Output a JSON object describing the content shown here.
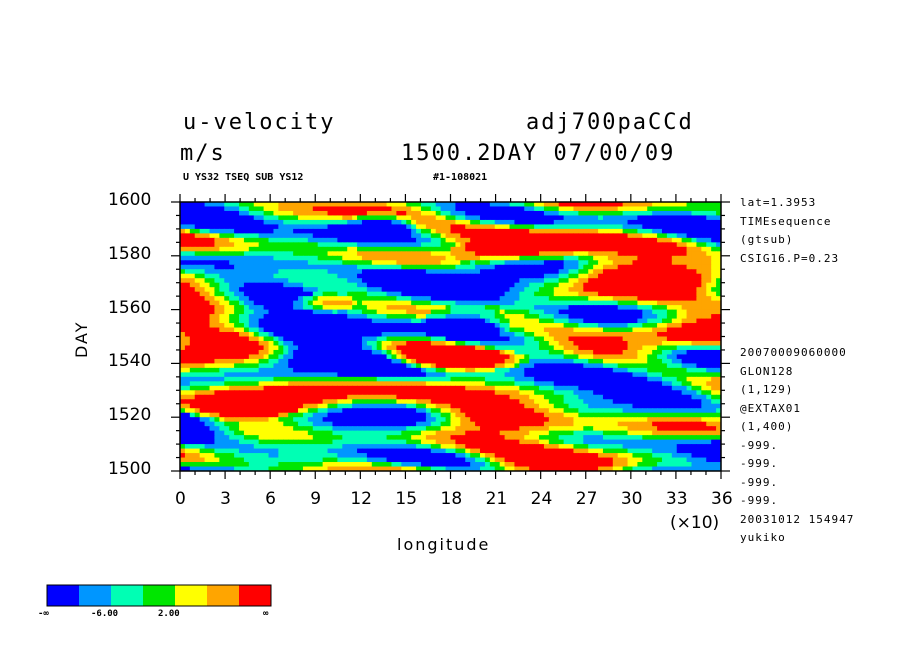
{
  "header": {
    "title_left": "u-velocity",
    "title_right": "adj700paCCd",
    "units": "m/s",
    "time_label": "1500.2DAY 07/00/09",
    "sub_left": "U YS32 TSEQ SUB YS12",
    "sub_right": "#1-108021"
  },
  "side_info_top": [
    "lat=1.3953",
    "TIMEsequence",
    "(gtsub)",
    "CSIG16.P=0.23"
  ],
  "side_info_bottom": [
    "20070009060000",
    "GLON128",
    "(1,129)",
    "@EXTAX01",
    "(1,400)",
    "-999.",
    "-999.",
    "-999.",
    "-999.",
    "20031012 154947",
    "yukiko"
  ],
  "colorbar": {
    "colors": [
      "#0000ff",
      "#0096ff",
      "#00ffb4",
      "#00e600",
      "#ffff00",
      "#ffa500",
      "#ff0000"
    ],
    "labels": [
      "-∞",
      "-6.00",
      "2.00",
      "∞"
    ]
  },
  "chart_data": {
    "type": "heatmap",
    "title": "u-velocity",
    "xlabel": "longitude",
    "ylabel": "DAY",
    "x_multiplier": "(×10)",
    "xticks": [
      "0",
      "3",
      "6",
      "9",
      "12",
      "15",
      "18",
      "21",
      "24",
      "27",
      "30",
      "33",
      "36"
    ],
    "yticks": [
      "1500",
      "1520",
      "1540",
      "1560",
      "1580",
      "1600"
    ],
    "xlim": [
      0,
      36
    ],
    "ylim": [
      1500,
      1600
    ],
    "color_levels": [
      -6.0,
      2.0
    ],
    "features": [
      {
        "level": "red",
        "x": [
          19,
          25
        ],
        "y": [
          1578,
          1585
        ]
      },
      {
        "level": "red",
        "x": [
          8,
          11
        ],
        "y": [
          1560,
          1565
        ]
      },
      {
        "level": "red",
        "x": [
          15,
          22
        ],
        "y": [
          1538,
          1545
        ]
      },
      {
        "level": "red",
        "x": [
          1,
          7
        ],
        "y": [
          1520,
          1528
        ]
      },
      {
        "level": "blue",
        "x": [
          17,
          21
        ],
        "y": [
          1550,
          1560
        ]
      },
      {
        "level": "blue",
        "x": [
          12,
          15
        ],
        "y": [
          1588,
          1595
        ]
      }
    ]
  }
}
